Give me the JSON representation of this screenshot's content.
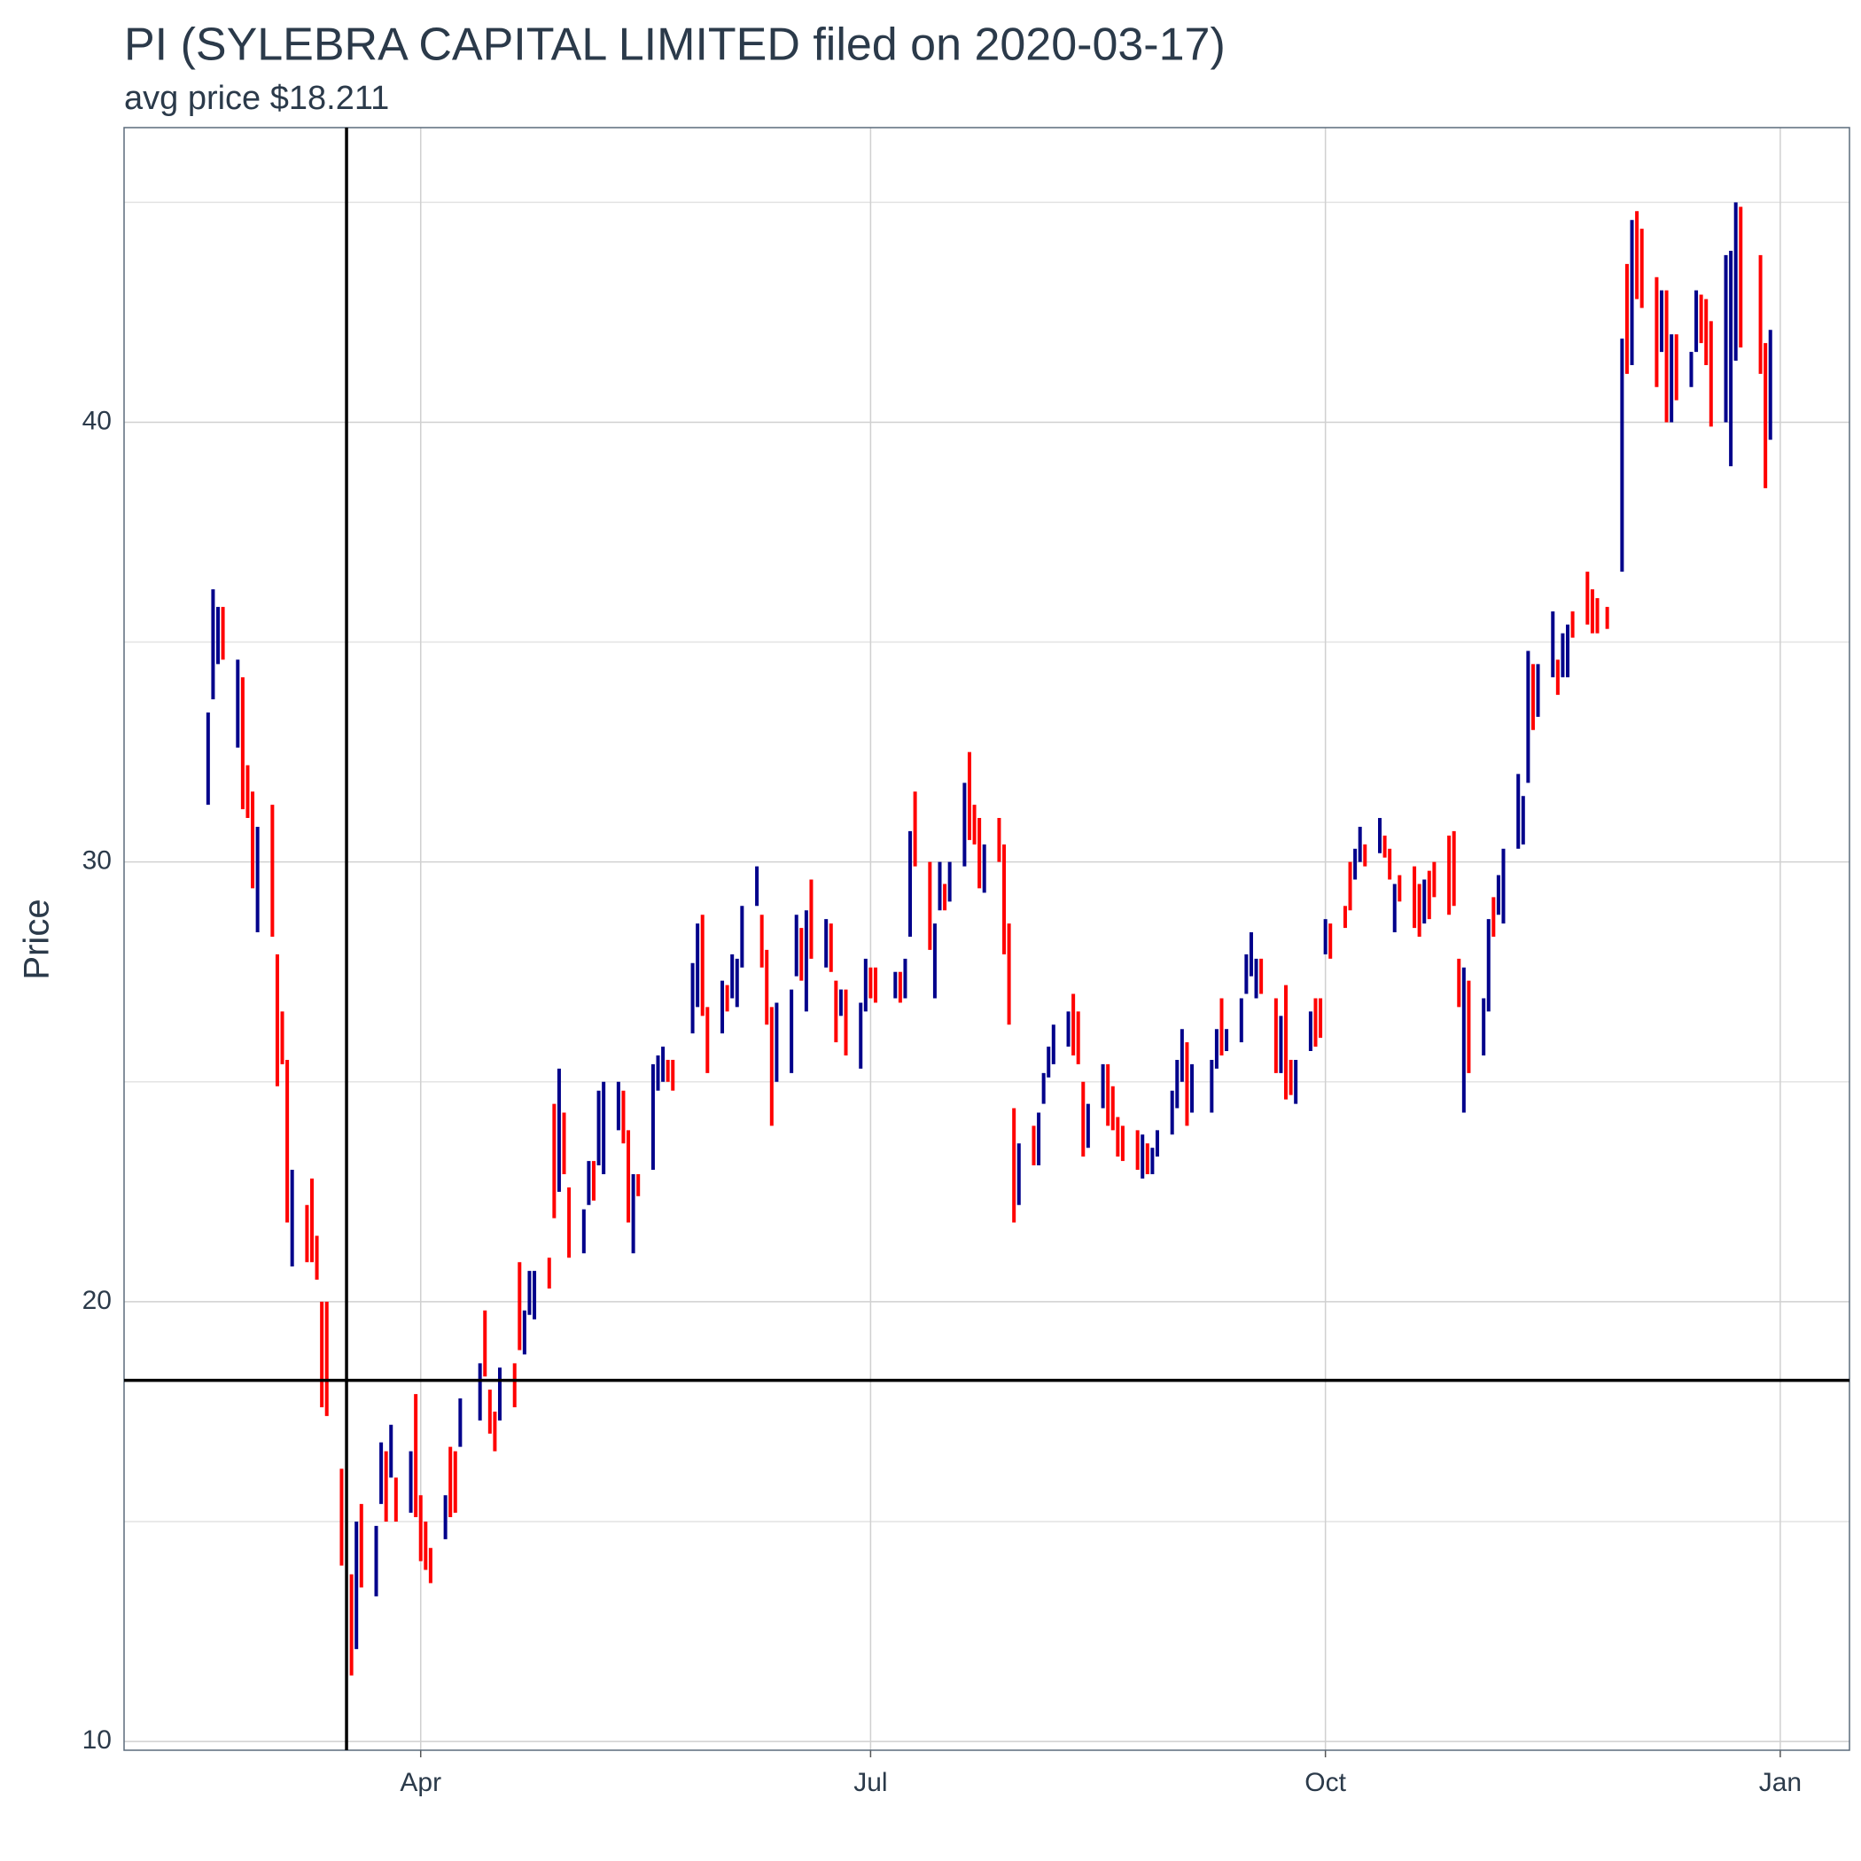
{
  "chart_data": {
    "type": "ohlc",
    "title": "PI (SYLEBRA CAPITAL LIMITED filed on 2020-03-17)",
    "subtitle": "avg price $18.211",
    "y_label": "Price",
    "xlim": [
      "2020-02-01",
      "2021-01-15"
    ],
    "xticks": [
      {
        "value": "2020-04-01",
        "label": "Apr"
      },
      {
        "value": "2020-07-01",
        "label": "Jul"
      },
      {
        "value": "2020-10-01",
        "label": "Oct"
      },
      {
        "value": "2021-01-01",
        "label": "Jan"
      }
    ],
    "ylim": [
      9.8,
      46.7
    ],
    "yticks": [
      10,
      20,
      30,
      40
    ],
    "minor_yticks": [
      15,
      25,
      35,
      45
    ],
    "grid": true,
    "vline": "2020-03-17",
    "hline": 18.211,
    "series": [
      {
        "color": "#00008b",
        "x": [
          "2020-02-18",
          "2020-02-19",
          "2020-02-20",
          "2020-02-24",
          "2020-02-28",
          "2020-03-06",
          "2020-03-19",
          "2020-03-23",
          "2020-03-24",
          "2020-03-26",
          "2020-03-30",
          "2020-04-06",
          "2020-04-09",
          "2020-04-13",
          "2020-04-17",
          "2020-04-22",
          "2020-04-23",
          "2020-04-24",
          "2020-04-29",
          "2020-05-04",
          "2020-05-05",
          "2020-05-07",
          "2020-05-08",
          "2020-05-11",
          "2020-05-14",
          "2020-05-18",
          "2020-05-19",
          "2020-05-20",
          "2020-05-26",
          "2020-05-27",
          "2020-06-01",
          "2020-06-03",
          "2020-06-04",
          "2020-06-05",
          "2020-06-08",
          "2020-06-12",
          "2020-06-15",
          "2020-06-16",
          "2020-06-18",
          "2020-06-22",
          "2020-06-25",
          "2020-06-29",
          "2020-06-30",
          "2020-07-06",
          "2020-07-08",
          "2020-07-09",
          "2020-07-14",
          "2020-07-15",
          "2020-07-17",
          "2020-07-20",
          "2020-07-24",
          "2020-07-31",
          "2020-08-04",
          "2020-08-05",
          "2020-08-06",
          "2020-08-07",
          "2020-08-10",
          "2020-08-14",
          "2020-08-17",
          "2020-08-25",
          "2020-08-27",
          "2020-08-28",
          "2020-08-31",
          "2020-09-01",
          "2020-09-02",
          "2020-09-04",
          "2020-09-08",
          "2020-09-09",
          "2020-09-11",
          "2020-09-14",
          "2020-09-15",
          "2020-09-16",
          "2020-09-17",
          "2020-09-22",
          "2020-09-25",
          "2020-09-28",
          "2020-10-01",
          "2020-10-07",
          "2020-10-08",
          "2020-10-12",
          "2020-10-15",
          "2020-10-21",
          "2020-10-29",
          "2020-11-02",
          "2020-11-03",
          "2020-11-05",
          "2020-11-06",
          "2020-11-09",
          "2020-11-10",
          "2020-11-11",
          "2020-11-13",
          "2020-11-16",
          "2020-11-18",
          "2020-11-19",
          "2020-11-30",
          "2020-12-02",
          "2020-12-08",
          "2020-12-10",
          "2020-12-14",
          "2020-12-15",
          "2020-12-21",
          "2020-12-22",
          "2020-12-23",
          "2020-12-30"
        ],
        "low": [
          31.3,
          33.7,
          34.5,
          32.6,
          28.4,
          20.8,
          12.1,
          13.3,
          15.4,
          16.0,
          15.2,
          14.6,
          16.7,
          17.3,
          17.3,
          18.8,
          19.7,
          19.6,
          22.5,
          21.1,
          22.2,
          23.1,
          22.9,
          23.9,
          21.1,
          23.0,
          24.8,
          25.0,
          26.1,
          26.7,
          26.1,
          26.9,
          26.7,
          27.6,
          29.0,
          25.0,
          25.2,
          27.4,
          26.6,
          27.6,
          26.5,
          25.3,
          26.6,
          26.9,
          26.9,
          28.3,
          26.9,
          28.9,
          29.1,
          29.9,
          29.3,
          22.2,
          23.1,
          24.5,
          25.1,
          25.4,
          25.8,
          23.5,
          24.4,
          22.8,
          22.9,
          23.3,
          23.8,
          24.4,
          25.0,
          24.3,
          24.3,
          25.3,
          25.7,
          25.9,
          27.0,
          27.4,
          26.9,
          25.2,
          24.5,
          25.7,
          27.9,
          29.6,
          30.0,
          30.2,
          28.4,
          28.6,
          24.3,
          25.6,
          26.6,
          28.8,
          28.6,
          30.3,
          30.4,
          31.8,
          33.3,
          34.2,
          34.2,
          34.2,
          36.6,
          41.3,
          41.6,
          40.0,
          40.8,
          41.6,
          40.0,
          39.0,
          41.4,
          39.6
        ],
        "high": [
          33.4,
          36.2,
          35.8,
          34.6,
          30.8,
          23.0,
          15.0,
          14.9,
          16.8,
          17.2,
          16.6,
          15.6,
          17.8,
          18.6,
          18.5,
          19.8,
          20.7,
          20.7,
          25.3,
          22.1,
          23.2,
          24.8,
          25.0,
          25.0,
          22.9,
          25.4,
          25.6,
          25.8,
          27.7,
          28.6,
          27.3,
          27.9,
          27.8,
          29.0,
          29.9,
          26.8,
          27.1,
          28.8,
          28.9,
          28.7,
          27.1,
          26.8,
          27.8,
          27.5,
          27.8,
          30.7,
          28.6,
          30.0,
          30.0,
          31.8,
          30.4,
          23.6,
          24.3,
          25.2,
          25.8,
          26.3,
          26.6,
          24.5,
          25.4,
          23.8,
          23.5,
          23.9,
          24.8,
          25.5,
          26.2,
          25.4,
          25.5,
          26.2,
          26.2,
          26.9,
          27.9,
          28.4,
          27.8,
          26.5,
          25.5,
          26.6,
          28.7,
          30.3,
          30.8,
          31.0,
          29.5,
          29.6,
          27.6,
          26.9,
          28.7,
          29.7,
          30.3,
          32.0,
          31.5,
          34.8,
          34.5,
          35.7,
          35.2,
          35.4,
          41.9,
          44.6,
          43.0,
          42.0,
          41.6,
          43.0,
          43.8,
          43.9,
          45.0,
          42.1
        ]
      },
      {
        "color": "#ff0000",
        "x": [
          "2020-02-21",
          "2020-02-25",
          "2020-02-26",
          "2020-02-27",
          "2020-03-02",
          "2020-03-03",
          "2020-03-04",
          "2020-03-05",
          "2020-03-09",
          "2020-03-10",
          "2020-03-11",
          "2020-03-12",
          "2020-03-13",
          "2020-03-16",
          "2020-03-18",
          "2020-03-20",
          "2020-03-25",
          "2020-03-27",
          "2020-03-31",
          "2020-04-01",
          "2020-04-02",
          "2020-04-03",
          "2020-04-07",
          "2020-04-08",
          "2020-04-14",
          "2020-04-15",
          "2020-04-16",
          "2020-04-20",
          "2020-04-21",
          "2020-04-27",
          "2020-04-28",
          "2020-04-30",
          "2020-05-01",
          "2020-05-06",
          "2020-05-12",
          "2020-05-13",
          "2020-05-15",
          "2020-05-21",
          "2020-05-22",
          "2020-05-28",
          "2020-05-29",
          "2020-06-02",
          "2020-06-09",
          "2020-06-10",
          "2020-06-11",
          "2020-06-17",
          "2020-06-19",
          "2020-06-23",
          "2020-06-24",
          "2020-06-26",
          "2020-07-01",
          "2020-07-02",
          "2020-07-07",
          "2020-07-10",
          "2020-07-13",
          "2020-07-16",
          "2020-07-21",
          "2020-07-22",
          "2020-07-23",
          "2020-07-27",
          "2020-07-28",
          "2020-07-29",
          "2020-07-30",
          "2020-08-03",
          "2020-08-11",
          "2020-08-12",
          "2020-08-13",
          "2020-08-18",
          "2020-08-19",
          "2020-08-20",
          "2020-08-21",
          "2020-08-24",
          "2020-08-26",
          "2020-09-03",
          "2020-09-10",
          "2020-09-18",
          "2020-09-21",
          "2020-09-23",
          "2020-09-24",
          "2020-09-29",
          "2020-09-30",
          "2020-10-02",
          "2020-10-05",
          "2020-10-06",
          "2020-10-09",
          "2020-10-13",
          "2020-10-14",
          "2020-10-16",
          "2020-10-19",
          "2020-10-20",
          "2020-10-22",
          "2020-10-23",
          "2020-10-26",
          "2020-10-27",
          "2020-10-28",
          "2020-10-30",
          "2020-11-04",
          "2020-11-12",
          "2020-11-17",
          "2020-11-20",
          "2020-11-23",
          "2020-11-24",
          "2020-11-25",
          "2020-11-27",
          "2020-12-01",
          "2020-12-03",
          "2020-12-04",
          "2020-12-07",
          "2020-12-09",
          "2020-12-11",
          "2020-12-16",
          "2020-12-17",
          "2020-12-18",
          "2020-12-24",
          "2020-12-28",
          "2020-12-29"
        ],
        "low": [
          34.6,
          31.2,
          31.0,
          29.4,
          28.3,
          24.9,
          25.4,
          21.8,
          20.9,
          20.9,
          20.5,
          17.6,
          17.4,
          14.0,
          11.5,
          13.5,
          15.0,
          15.0,
          15.1,
          14.1,
          13.9,
          13.6,
          15.1,
          15.2,
          18.3,
          17.0,
          16.6,
          17.6,
          18.9,
          20.3,
          21.9,
          22.9,
          21.0,
          22.3,
          23.6,
          21.8,
          22.4,
          25.0,
          24.8,
          26.5,
          25.2,
          26.6,
          27.6,
          26.3,
          24.0,
          27.3,
          27.8,
          27.5,
          25.9,
          25.6,
          26.9,
          26.8,
          26.8,
          29.9,
          28.0,
          28.9,
          30.5,
          30.4,
          29.4,
          30.0,
          27.9,
          26.3,
          21.8,
          23.1,
          25.6,
          25.4,
          23.3,
          24.0,
          23.9,
          23.3,
          23.2,
          23.0,
          22.9,
          24.0,
          25.6,
          27.0,
          25.2,
          24.6,
          24.7,
          25.8,
          26.0,
          27.8,
          28.5,
          28.9,
          29.9,
          30.1,
          29.6,
          29.1,
          28.5,
          28.3,
          28.7,
          29.2,
          28.8,
          29.0,
          26.7,
          25.2,
          28.3,
          33.0,
          33.8,
          35.1,
          35.4,
          35.2,
          35.2,
          35.3,
          41.1,
          42.8,
          42.6,
          40.8,
          40.0,
          40.5,
          41.8,
          41.3,
          39.9,
          41.7,
          41.1,
          38.5
        ],
        "high": [
          35.8,
          34.2,
          32.2,
          31.6,
          31.3,
          27.9,
          26.6,
          25.5,
          22.2,
          22.8,
          21.5,
          20.0,
          20.0,
          16.2,
          13.8,
          15.4,
          16.6,
          16.0,
          17.9,
          15.6,
          15.0,
          14.4,
          16.7,
          16.6,
          19.8,
          18.0,
          17.5,
          18.6,
          20.9,
          21.0,
          24.5,
          24.3,
          22.6,
          23.2,
          24.8,
          23.9,
          22.9,
          25.5,
          25.5,
          28.8,
          26.7,
          27.2,
          28.8,
          28.0,
          26.7,
          28.5,
          29.6,
          28.6,
          27.3,
          27.1,
          27.6,
          27.6,
          27.5,
          31.6,
          30.0,
          29.5,
          32.5,
          31.3,
          31.0,
          31.0,
          30.4,
          28.6,
          24.4,
          24.0,
          27.0,
          26.6,
          25.0,
          25.4,
          24.9,
          24.2,
          24.0,
          23.9,
          23.6,
          25.9,
          26.9,
          27.8,
          26.9,
          27.2,
          25.5,
          26.9,
          26.9,
          28.6,
          29.0,
          30.0,
          30.4,
          30.6,
          30.3,
          29.7,
          29.9,
          29.5,
          29.8,
          30.0,
          30.6,
          30.7,
          27.8,
          27.3,
          29.2,
          34.5,
          34.6,
          35.7,
          36.6,
          36.2,
          36.0,
          35.8,
          43.6,
          44.8,
          44.4,
          43.3,
          43.0,
          42.0,
          42.9,
          42.8,
          42.3,
          44.9,
          43.8,
          41.8
        ]
      }
    ]
  }
}
